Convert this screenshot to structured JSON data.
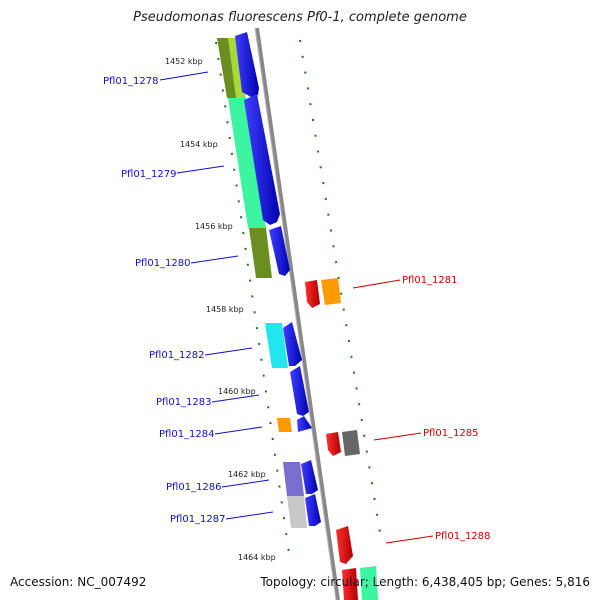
{
  "title": "Pseudomonas fluorescens Pf0-1, complete genome",
  "footer": {
    "accession": "Accession: NC_007492",
    "summary": "Topology: circular; Length: 6,438,405 bp; Genes: 5,816"
  },
  "coordinate_labels": [
    "1452 kbp",
    "1454 kbp",
    "1456 kbp",
    "1458 kbp",
    "1460 kbp",
    "1462 kbp",
    "1464 kbp"
  ],
  "genes": [
    {
      "label": "Pfl01_1278",
      "strand": "left",
      "color": "#1010cc"
    },
    {
      "label": "Pfl01_1279",
      "strand": "left",
      "color": "#1010cc"
    },
    {
      "label": "Pfl01_1280",
      "strand": "left",
      "color": "#1010cc"
    },
    {
      "label": "Pfl01_1281",
      "strand": "right",
      "color": "#cc0000"
    },
    {
      "label": "Pfl01_1282",
      "strand": "left",
      "color": "#1010cc"
    },
    {
      "label": "Pfl01_1283",
      "strand": "left",
      "color": "#1010cc"
    },
    {
      "label": "Pfl01_1284",
      "strand": "left",
      "color": "#1010cc"
    },
    {
      "label": "Pfl01_1285",
      "strand": "right",
      "color": "#cc0000"
    },
    {
      "label": "Pfl01_1286",
      "strand": "left",
      "color": "#1010cc"
    },
    {
      "label": "Pfl01_1287",
      "strand": "left",
      "color": "#1010cc"
    },
    {
      "label": "Pfl01_1288",
      "strand": "right",
      "color": "#cc0000"
    }
  ],
  "colors": {
    "backbone": "#888888",
    "forward_strand": "#0000dd",
    "reverse_strand": "#dd0000",
    "tick": "#1a7a1a",
    "cog_yellow_green": "#a8d83a",
    "cog_olive": "#6b8e23",
    "cog_spring_green": "#3cf5a0",
    "cog_cyan": "#22e6ee",
    "cog_orange": "#ff9a00",
    "cog_dark_gray": "#666666",
    "cog_slate_blue": "#7a6ed0",
    "cog_light_gray": "#c8c8c8"
  }
}
